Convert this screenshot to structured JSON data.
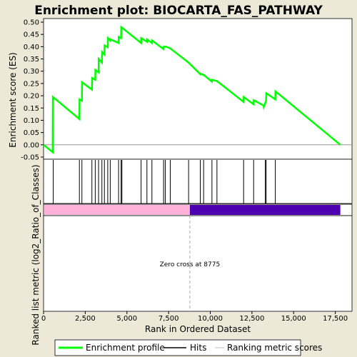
{
  "chart_data": {
    "type": "line",
    "title": "Enrichment plot: BIOCARTA_FAS_PATHWAY",
    "ylabel_top": "Enrichment score (ES)",
    "ylabel_bottom": "Ranked list metric (log2_Ratio_of_Classes)",
    "xlabel": "Rank in Ordered Dataset",
    "xlim": [
      0,
      18500
    ],
    "ylim": [
      -0.05,
      0.5
    ],
    "x_ticks": [
      0,
      2500,
      5000,
      7500,
      10000,
      12500,
      15000,
      17500
    ],
    "x_tick_labels": [
      "0",
      "2,500",
      "5,000",
      "7,500",
      "10,000",
      "12,500",
      "15,000",
      "17,500"
    ],
    "y_ticks": [
      -0.05,
      0.0,
      0.05,
      0.1,
      0.15,
      0.2,
      0.25,
      0.3,
      0.35,
      0.4,
      0.45,
      0.5
    ],
    "y_tick_labels": [
      "-0.05",
      "0.00",
      "0.05",
      "0.10",
      "0.15",
      "0.20",
      "0.25",
      "0.30",
      "0.35",
      "0.40",
      "0.45",
      "0.50"
    ],
    "annotation": "Zero cross at 8775",
    "zero_cross": 8775,
    "series": [
      {
        "name": "Enrichment profile",
        "color": "#00ff00",
        "x": [
          0,
          550,
          560,
          2150,
          2160,
          2300,
          2310,
          2900,
          2910,
          3100,
          3110,
          3300,
          3310,
          3500,
          3510,
          3650,
          3660,
          3850,
          3860,
          4000,
          4010,
          4500,
          4510,
          4650,
          4660,
          4700,
          5850,
          5860,
          6200,
          6210,
          6500,
          6510,
          7200,
          7210,
          7350,
          7600,
          8700,
          9400,
          9410,
          9600,
          10100,
          10110,
          10400,
          12000,
          12010,
          12600,
          12610,
          13200,
          13210,
          13350,
          13360,
          13900,
          13910,
          17800
        ],
        "y": [
          0.0,
          -0.03,
          0.195,
          0.105,
          0.185,
          0.18,
          0.255,
          0.225,
          0.272,
          0.265,
          0.305,
          0.295,
          0.35,
          0.335,
          0.378,
          0.368,
          0.405,
          0.398,
          0.435,
          0.425,
          0.43,
          0.415,
          0.44,
          0.435,
          0.48,
          0.478,
          0.415,
          0.435,
          0.42,
          0.43,
          0.415,
          0.425,
          0.39,
          0.4,
          0.4,
          0.393,
          0.335,
          0.288,
          0.29,
          0.285,
          0.258,
          0.265,
          0.26,
          0.175,
          0.195,
          0.165,
          0.182,
          0.16,
          0.155,
          0.18,
          0.21,
          0.185,
          0.218,
          0.0
        ]
      }
    ],
    "hits": [
      580,
      2150,
      2300,
      2900,
      3100,
      3300,
      3500,
      3650,
      3850,
      4000,
      4500,
      4650,
      4700,
      5850,
      6200,
      6500,
      7200,
      7300,
      7600,
      8700,
      9400,
      9600,
      10100,
      10400,
      12000,
      12600,
      13300,
      13350,
      13900
    ],
    "ranking_bar": {
      "positive_color": "#ffb2d9",
      "negative_color": "#4c00b0",
      "positive_range": [
        0,
        8775
      ],
      "negative_range": [
        8775,
        17800
      ]
    },
    "legend": {
      "placement": "bottom",
      "items": [
        {
          "label": "Enrichment profile",
          "color": "#00ff00",
          "kind": "thick-line"
        },
        {
          "label": "Hits",
          "color": "#000000",
          "kind": "thin-line"
        },
        {
          "label": "Ranking metric scores",
          "color": "#bbbbbb",
          "kind": "thin-line"
        }
      ]
    }
  }
}
